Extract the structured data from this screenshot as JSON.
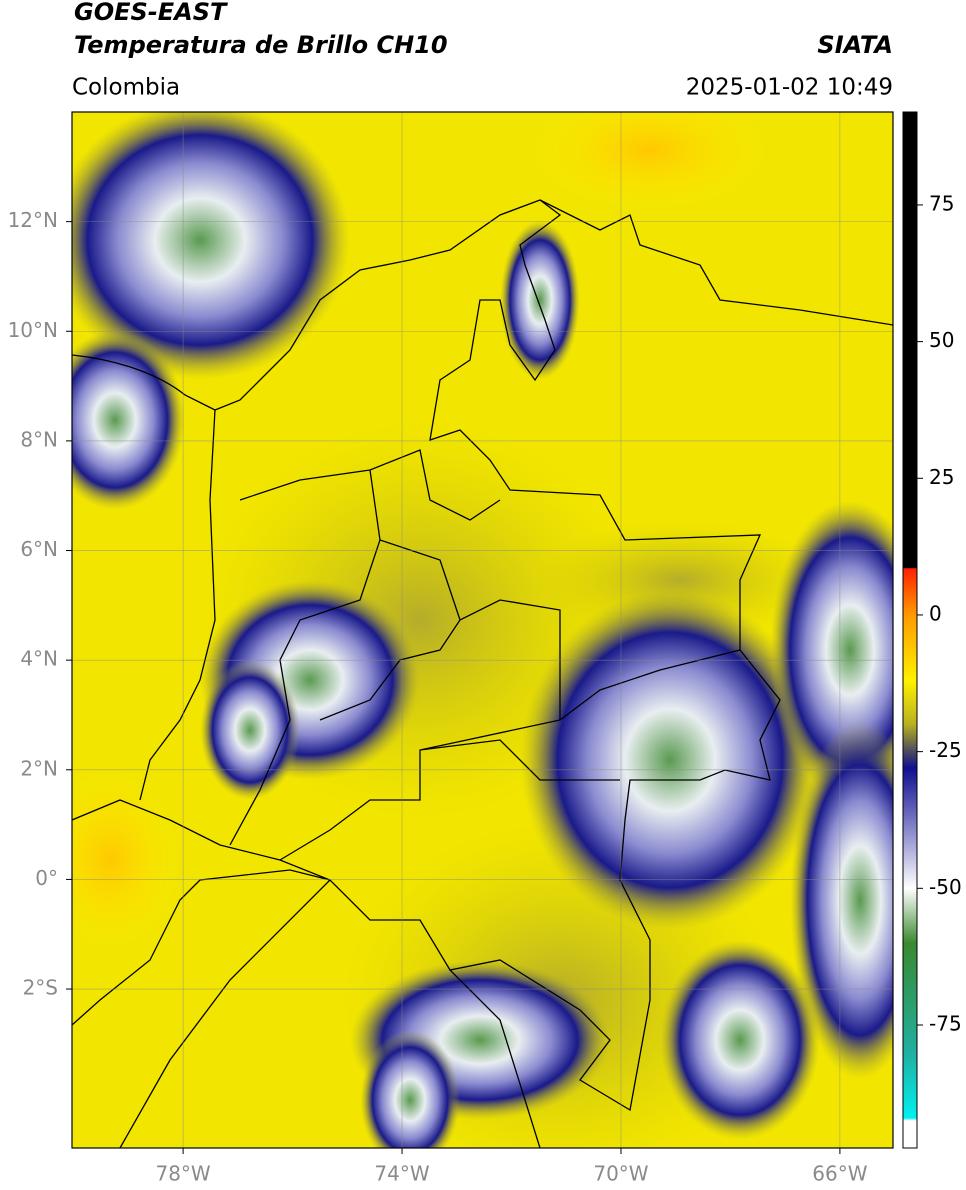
{
  "map": {
    "title": "GOES-EAST",
    "subtitle": "Temperatura de Brillo CH10",
    "agency": "SIATA",
    "region": "Colombia",
    "timestamp": "2025-01-02 10:49",
    "xlim": [
      -80.03,
      -65.03
    ],
    "ylim": [
      -4.9,
      14
    ],
    "xticks": [
      {
        "value": -78,
        "label": "78°W"
      },
      {
        "value": -74,
        "label": "74°W"
      },
      {
        "value": -70,
        "label": "70°W"
      },
      {
        "value": -66,
        "label": "66°W"
      }
    ],
    "yticks": [
      {
        "value": 12,
        "label": "12°N"
      },
      {
        "value": 10,
        "label": "10°N"
      },
      {
        "value": 8,
        "label": "8°N"
      },
      {
        "value": 6,
        "label": "6°N"
      },
      {
        "value": 4,
        "label": "4°N"
      },
      {
        "value": 2,
        "label": "2°N"
      },
      {
        "value": 0,
        "label": "0°"
      },
      {
        "value": -2,
        "label": "2°S"
      }
    ],
    "grid": true,
    "colorbar": {
      "lim": [
        -97.5,
        92
      ],
      "ticks": [
        75,
        50,
        25,
        0,
        -25,
        -50,
        -75
      ],
      "colormap": [
        {
          "value": 92,
          "color": "#000000"
        },
        {
          "value": 8.6,
          "color": "#000000"
        },
        {
          "value": 8.5,
          "color": "#ff2000"
        },
        {
          "value": 0,
          "color": "#ff9a00"
        },
        {
          "value": -12,
          "color": "#fff200"
        },
        {
          "value": -20,
          "color": "#b8b020"
        },
        {
          "value": -25,
          "color": "#4a4a60"
        },
        {
          "value": -28,
          "color": "#101090"
        },
        {
          "value": -40,
          "color": "#9090d0"
        },
        {
          "value": -50,
          "color": "#ffffff"
        },
        {
          "value": -60,
          "color": "#3a8a30"
        },
        {
          "value": -80,
          "color": "#20b0a0"
        },
        {
          "value": -92,
          "color": "#00f0f0"
        },
        {
          "value": -92.5,
          "color": "#ffffff"
        },
        {
          "value": -97.5,
          "color": "#ffffff"
        }
      ]
    }
  }
}
